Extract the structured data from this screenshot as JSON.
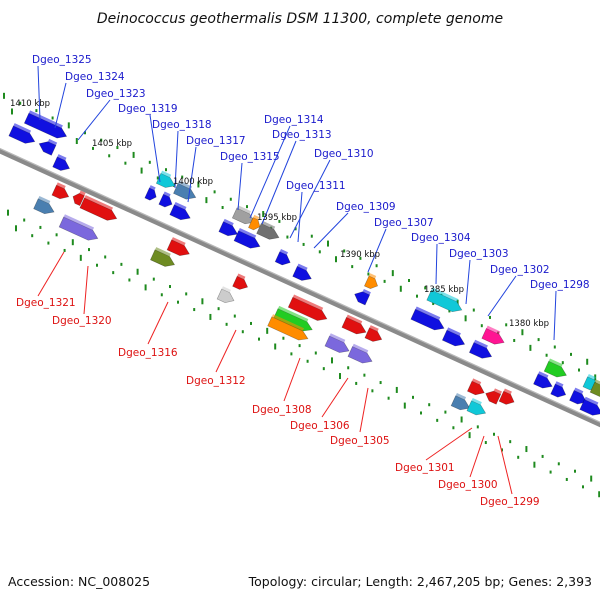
{
  "title": "Deinococcus geothermalis DSM 11300, complete genome",
  "footer": {
    "accession": "Accession: NC_008025",
    "summary": "Topology: circular; Length: 2,467,205 bp; Genes: 2,393"
  },
  "colors": {
    "backbone": "#8a8a8a",
    "tick": "#1e8a1e",
    "top_label": "#1a1acc",
    "bottom_label": "#dd1111",
    "leader_top": "#2244dd",
    "leader_bottom": "#ee2222"
  },
  "kbp_marks": [
    {
      "text": "1410 kbp",
      "kbp": 1410
    },
    {
      "text": "1405 kbp",
      "kbp": 1405
    },
    {
      "text": "1400 kbp",
      "kbp": 1400
    },
    {
      "text": "1395 kbp",
      "kbp": 1395
    },
    {
      "text": "1390 kbp",
      "kbp": 1390
    },
    {
      "text": "1385 kbp",
      "kbp": 1385
    },
    {
      "text": "1380 kbp",
      "kbp": 1380
    }
  ],
  "genes_top": [
    {
      "label": "Dgeo_1325"
    },
    {
      "label": "Dgeo_1324"
    },
    {
      "label": "Dgeo_1323"
    },
    {
      "label": "Dgeo_1319"
    },
    {
      "label": "Dgeo_1318"
    },
    {
      "label": "Dgeo_1317"
    },
    {
      "label": "Dgeo_1315"
    },
    {
      "label": "Dgeo_1314"
    },
    {
      "label": "Dgeo_1313"
    },
    {
      "label": "Dgeo_1310"
    },
    {
      "label": "Dgeo_1311"
    },
    {
      "label": "Dgeo_1309"
    },
    {
      "label": "Dgeo_1307"
    },
    {
      "label": "Dgeo_1304"
    },
    {
      "label": "Dgeo_1303"
    },
    {
      "label": "Dgeo_1302"
    },
    {
      "label": "Dgeo_1298"
    }
  ],
  "genes_bottom": [
    {
      "label": "Dgeo_1321"
    },
    {
      "label": "Dgeo_1320"
    },
    {
      "label": "Dgeo_1316"
    },
    {
      "label": "Dgeo_1312"
    },
    {
      "label": "Dgeo_1308"
    },
    {
      "label": "Dgeo_1306"
    },
    {
      "label": "Dgeo_1305"
    },
    {
      "label": "Dgeo_1301"
    },
    {
      "label": "Dgeo_1300"
    },
    {
      "label": "Dgeo_1299"
    }
  ]
}
